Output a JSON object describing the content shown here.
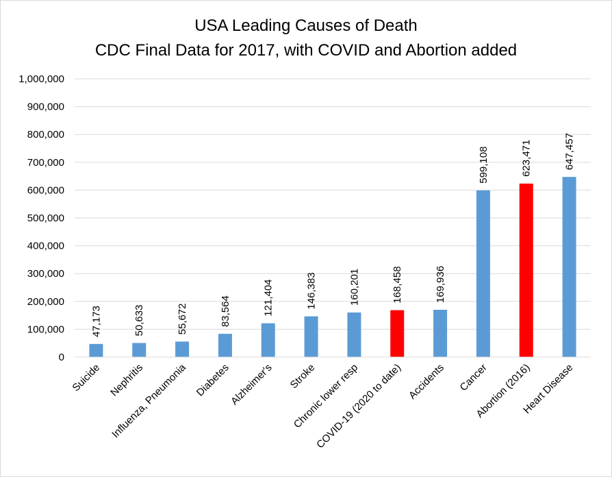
{
  "chart_data": {
    "type": "bar",
    "title": "USA Leading Causes of Death",
    "subtitle": "CDC Final Data for 2017, with COVID and Abortion added",
    "xlabel": "",
    "ylabel": "",
    "ylim": [
      0,
      1000000
    ],
    "yticks": [
      0,
      100000,
      200000,
      300000,
      400000,
      500000,
      600000,
      700000,
      800000,
      900000,
      1000000
    ],
    "ytick_labels": [
      "0",
      "100,000",
      "200,000",
      "300,000",
      "400,000",
      "500,000",
      "600,000",
      "700,000",
      "800,000",
      "900,000",
      "1,000,000"
    ],
    "grid": true,
    "legend": "none",
    "categories": [
      "Suicide",
      "Nephritis",
      "Influenza, Pneumonia",
      "Diabetes",
      "Alzheimer's",
      "Stroke",
      "Chronic lower resp",
      "COVID-19 (2020 to date)",
      "Accidents",
      "Cancer",
      "Abortion (2016)",
      "Heart Disease"
    ],
    "values": [
      47173,
      50633,
      55672,
      83564,
      121404,
      146383,
      160201,
      168458,
      169936,
      599108,
      623471,
      647457
    ],
    "data_labels": [
      "47,173",
      "50,633",
      "55,672",
      "83,564",
      "121,404",
      "146,383",
      "160,201",
      "168,458",
      "169,936",
      "599,108",
      "623,471",
      "647,457"
    ],
    "bar_colors": [
      "#5b9bd5",
      "#5b9bd5",
      "#5b9bd5",
      "#5b9bd5",
      "#5b9bd5",
      "#5b9bd5",
      "#5b9bd5",
      "#ff0000",
      "#5b9bd5",
      "#5b9bd5",
      "#ff0000",
      "#5b9bd5"
    ],
    "colors": {
      "default_bar": "#5b9bd5",
      "highlight_bar": "#ff0000",
      "gridline": "#d9d9d9"
    }
  }
}
